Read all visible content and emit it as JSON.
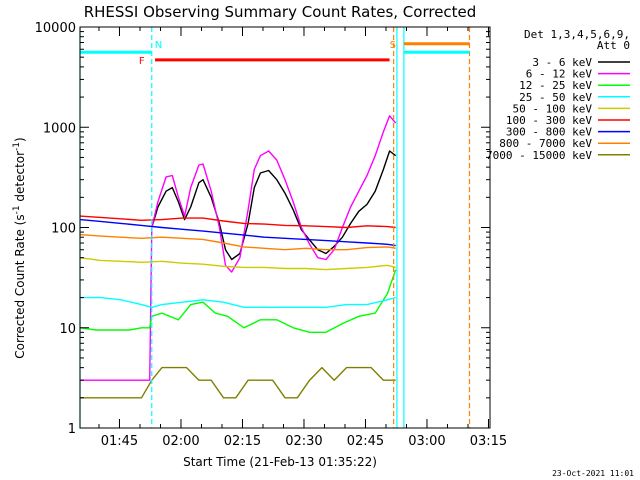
{
  "chart_data": {
    "type": "line",
    "title": "RHESSI Observing Summary Count Rates, Corrected",
    "xlabel": "Start Time (21-Feb-13 01:35:22)",
    "ylabel": "Corrected Count Rate (s⁻¹ detector⁻¹)",
    "ylabel_parts": {
      "prefix": "Corrected Count Rate (s",
      "sup1": "-1",
      "mid": " detector",
      "sup2": "-1",
      "suffix": ")"
    },
    "y_scale": "log",
    "ylim": [
      1,
      10000
    ],
    "xlim_minutes": [
      0,
      100
    ],
    "x_tick_labels": [
      "01:45",
      "02:00",
      "02:15",
      "02:30",
      "02:45",
      "03:00",
      "03:15"
    ],
    "y_tick_labels": [
      "1",
      "10",
      "100",
      "1000",
      "10000"
    ],
    "footer_date": "23-Oct-2021 11:01",
    "legend": {
      "header": [
        "Det 1,3,4,5,6,9,",
        "Att 0"
      ],
      "placement": "right",
      "entries": [
        {
          "label": "3 - 6 keV",
          "color": "#000000"
        },
        {
          "label": "6 - 12 keV",
          "color": "#ff00ff"
        },
        {
          "label": "12 - 25 keV",
          "color": "#00ff00"
        },
        {
          "label": "25 - 50 keV",
          "color": "#00ffff"
        },
        {
          "label": "50 - 100 keV",
          "color": "#cccc00"
        },
        {
          "label": "100 - 300 keV",
          "color": "#ff0000"
        },
        {
          "label": "300 - 800 keV",
          "color": "#0000ff"
        },
        {
          "label": "800 - 7000 keV",
          "color": "#ff8000"
        },
        {
          "label": "7000 - 15000 keV",
          "color": "#808000"
        }
      ]
    },
    "annotations": [
      {
        "label": "N",
        "color": "#00ffff",
        "x_minutes": 17.5,
        "y": 5600
      },
      {
        "label": "F",
        "color": "#ff0000",
        "x_minutes": 17.3,
        "y": 4700
      },
      {
        "label": "S",
        "color": "#ff8000",
        "x_minutes": 76.5,
        "y": 6800
      }
    ],
    "night_bars": [
      {
        "color": "#00ffff",
        "x_minutes": [
          0,
          17.5
        ],
        "y": 5600
      },
      {
        "color": "#00ffff",
        "x_minutes": [
          79,
          95
        ],
        "y": 5600
      }
    ],
    "flare_bar": {
      "color": "#ff0000",
      "x_minutes": [
        18.3,
        75.5
      ],
      "y": 4700
    },
    "saa_bar": {
      "color": "#ff8000",
      "x_minutes": [
        79,
        95
      ],
      "y": 6800
    },
    "vertical_markers": [
      {
        "x_minutes": 0,
        "color": "#00ffff",
        "style": "solid"
      },
      {
        "x_minutes": 17.5,
        "color": "#00ffff",
        "style": "dashed"
      },
      {
        "x_minutes": 76.5,
        "color": "#ff8000",
        "style": "dashed"
      },
      {
        "x_minutes": 77.3,
        "color": "#00ffff",
        "style": "solid"
      },
      {
        "x_minutes": 79,
        "color": "#00ffff",
        "style": "solid"
      },
      {
        "x_minutes": 95,
        "color": "#ff8000",
        "style": "dashed"
      }
    ],
    "series": [
      {
        "name": "3 - 6 keV",
        "color": "#000000",
        "x": [
          17.5,
          19,
          21,
          22.5,
          24,
          25.5,
          27,
          29,
          30,
          32,
          34,
          35.5,
          37,
          39,
          41,
          42.5,
          44,
          46,
          48,
          50,
          52,
          54,
          56,
          58,
          60,
          62,
          64,
          66,
          68,
          70,
          72,
          74,
          75.5,
          77
        ],
        "y": [
          100,
          160,
          230,
          250,
          180,
          120,
          160,
          280,
          300,
          200,
          110,
          60,
          48,
          55,
          110,
          250,
          350,
          370,
          300,
          220,
          150,
          95,
          75,
          60,
          55,
          65,
          80,
          110,
          145,
          170,
          230,
          380,
          580,
          520
        ]
      },
      {
        "name": "6 - 12 keV",
        "color": "#ff00ff",
        "x": [
          0,
          5,
          10,
          14,
          17,
          17.5,
          19,
          21,
          22.5,
          24,
          25.5,
          27,
          29,
          30,
          32,
          34,
          35.5,
          37,
          39,
          41,
          42.5,
          44,
          46,
          48,
          50,
          52,
          54,
          56,
          58,
          60,
          62,
          64,
          66,
          68,
          70,
          72,
          74,
          75.5,
          77
        ],
        "y": [
          3,
          3,
          3,
          3,
          3,
          100,
          180,
          320,
          330,
          200,
          130,
          250,
          420,
          430,
          230,
          100,
          42,
          36,
          50,
          150,
          380,
          520,
          580,
          470,
          300,
          180,
          100,
          68,
          50,
          48,
          60,
          100,
          160,
          230,
          330,
          520,
          900,
          1300,
          1100
        ]
      },
      {
        "name": "12 - 25 keV",
        "color": "#00ff00",
        "x": [
          0,
          4,
          8,
          12,
          15,
          17,
          17.5,
          20,
          24,
          27,
          30,
          33,
          36,
          40,
          44,
          48,
          52,
          56,
          60,
          64,
          68,
          72,
          75,
          77
        ],
        "y": [
          10,
          9.5,
          9.5,
          9.5,
          10,
          10,
          13,
          14,
          12,
          17,
          18,
          14,
          13,
          10,
          12,
          12,
          10,
          9,
          9,
          11,
          13,
          14,
          22,
          38
        ]
      },
      {
        "name": "25 - 50 keV",
        "color": "#00ffff",
        "x": [
          0,
          5,
          10,
          15,
          17.5,
          20,
          25,
          30,
          35,
          40,
          45,
          50,
          55,
          60,
          65,
          70,
          75,
          77
        ],
        "y": [
          20,
          20,
          19,
          17,
          16,
          17,
          18,
          19,
          18,
          16,
          16,
          16,
          16,
          16,
          17,
          17,
          19,
          20
        ]
      },
      {
        "name": "50 - 100 keV",
        "color": "#cccc00",
        "x": [
          0,
          5,
          10,
          15,
          20,
          25,
          30,
          35,
          40,
          45,
          50,
          55,
          60,
          65,
          70,
          75,
          77
        ],
        "y": [
          50,
          47,
          46,
          45,
          46,
          44,
          43,
          41,
          40,
          40,
          39,
          39,
          38,
          39,
          40,
          42,
          40
        ]
      },
      {
        "name": "100 - 300 keV",
        "color": "#ff0000",
        "x": [
          0,
          5,
          10,
          15,
          20,
          25,
          30,
          35,
          40,
          45,
          50,
          55,
          60,
          65,
          70,
          75,
          77
        ],
        "y": [
          130,
          126,
          122,
          118,
          120,
          124,
          124,
          116,
          110,
          108,
          105,
          104,
          102,
          100,
          104,
          102,
          100
        ]
      },
      {
        "name": "300 - 800 keV",
        "color": "#0000ff",
        "x": [
          0,
          5,
          10,
          15,
          20,
          25,
          30,
          35,
          40,
          45,
          50,
          55,
          60,
          65,
          70,
          75,
          77
        ],
        "y": [
          120,
          115,
          110,
          105,
          100,
          96,
          92,
          88,
          84,
          80,
          78,
          76,
          74,
          72,
          70,
          68,
          66
        ]
      },
      {
        "name": "800 - 7000 keV",
        "color": "#ff8000",
        "x": [
          0,
          5,
          10,
          15,
          20,
          25,
          30,
          35,
          40,
          45,
          50,
          55,
          60,
          65,
          70,
          75,
          77
        ],
        "y": [
          85,
          82,
          80,
          78,
          80,
          78,
          76,
          70,
          64,
          62,
          60,
          62,
          60,
          60,
          63,
          64,
          62
        ]
      },
      {
        "name": "7000 - 15000 keV",
        "color": "#808000",
        "x": [
          0,
          3,
          6,
          9,
          12,
          15,
          17.5,
          20,
          23,
          26,
          29,
          32,
          35,
          38,
          41,
          44,
          47,
          50,
          53,
          56,
          59,
          62,
          65,
          68,
          71,
          74,
          77
        ],
        "y": [
          2,
          2,
          2,
          2,
          2,
          2,
          3,
          4,
          4,
          4,
          3,
          3,
          2,
          2,
          3,
          3,
          3,
          2,
          2,
          3,
          4,
          3,
          4,
          4,
          4,
          3,
          3
        ]
      }
    ]
  }
}
